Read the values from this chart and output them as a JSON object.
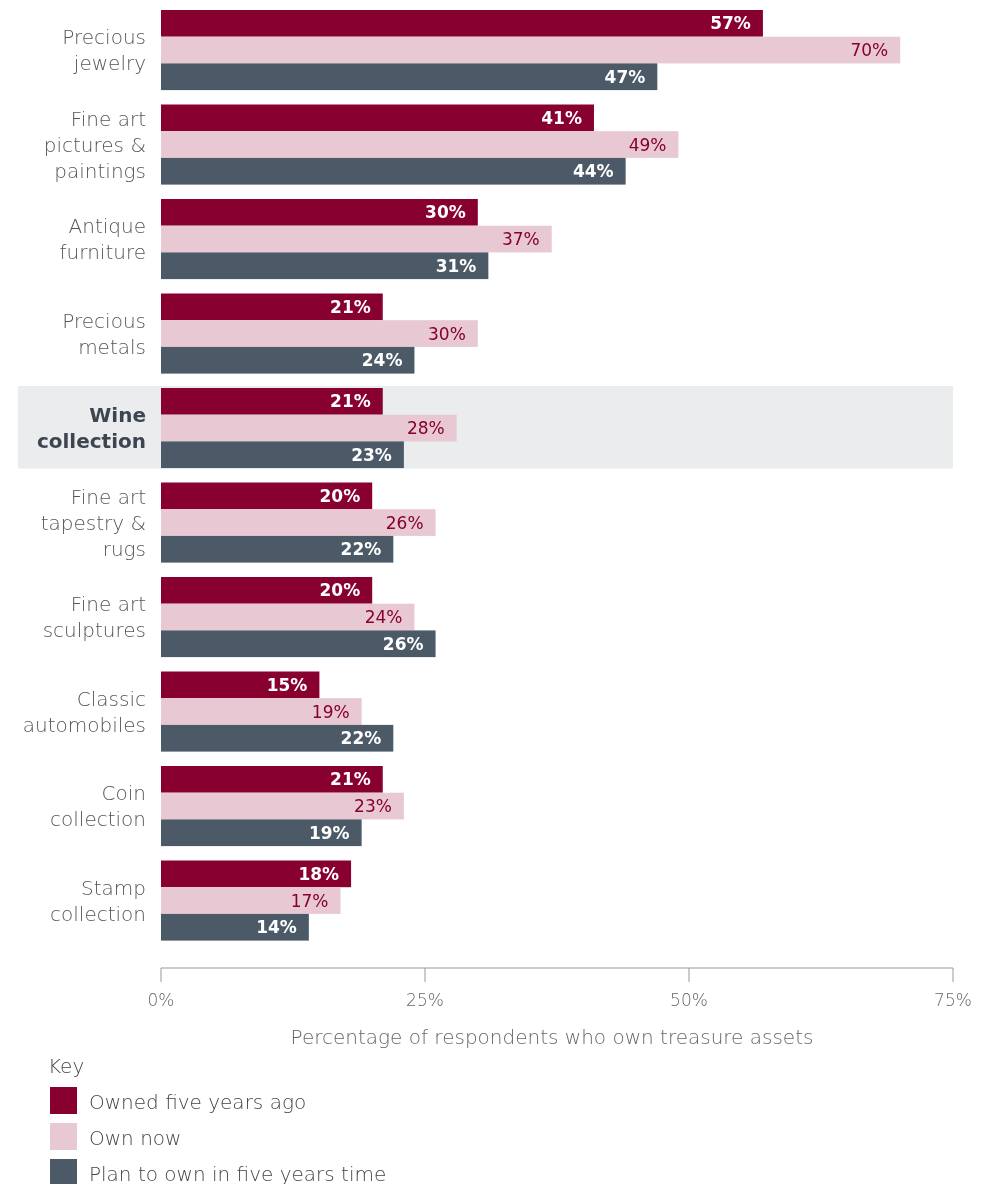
{
  "chart_data": {
    "type": "bar",
    "orientation": "horizontal",
    "categories": [
      "Precious jewelry",
      "Fine art pictures & paintings",
      "Antique furniture",
      "Precious metals",
      "Wine collection",
      "Fine art tapestry & rugs",
      "Fine art sculptures",
      "Classic automobiles",
      "Coin collection",
      "Stamp collection"
    ],
    "series": [
      {
        "name": "Owned five years ago",
        "color": "#870030",
        "values": [
          57,
          41,
          30,
          21,
          21,
          20,
          20,
          15,
          21,
          18
        ],
        "value_labels": [
          "57%",
          "41%",
          "30%",
          "21%",
          "21%",
          "20%",
          "20%",
          "15%",
          "21%",
          "18%"
        ]
      },
      {
        "name": "Own now",
        "color": "#e8c9d3",
        "values": [
          70,
          49,
          37,
          30,
          28,
          26,
          24,
          19,
          23,
          17
        ],
        "value_labels": [
          "70%",
          "49%",
          "37%",
          "30%",
          "28%",
          "26%",
          "24%",
          "19%",
          "23%",
          "17%"
        ]
      },
      {
        "name": "Plan to own in five years time",
        "color": "#4b5a66",
        "values": [
          47,
          44,
          31,
          24,
          23,
          22,
          26,
          22,
          19,
          14
        ],
        "value_labels": [
          "47%",
          "44%",
          "31%",
          "24%",
          "23%",
          "22%",
          "26%",
          "22%",
          "19%",
          "14%"
        ]
      }
    ],
    "xlim": [
      0,
      75
    ],
    "xticks": [
      {
        "value": 0,
        "label": "0%"
      },
      {
        "value": 25,
        "label": "25%"
      },
      {
        "value": 50,
        "label": "50%"
      },
      {
        "value": 75,
        "label": "75%"
      }
    ],
    "xlabel": "Percentage of respondents who own treasure assets",
    "legend_title": "Key",
    "legend": "bottom",
    "bands": [
      {
        "axis": "y",
        "from": "Wine collection",
        "to": "Wine collection",
        "color": "#ebecee"
      }
    ]
  }
}
